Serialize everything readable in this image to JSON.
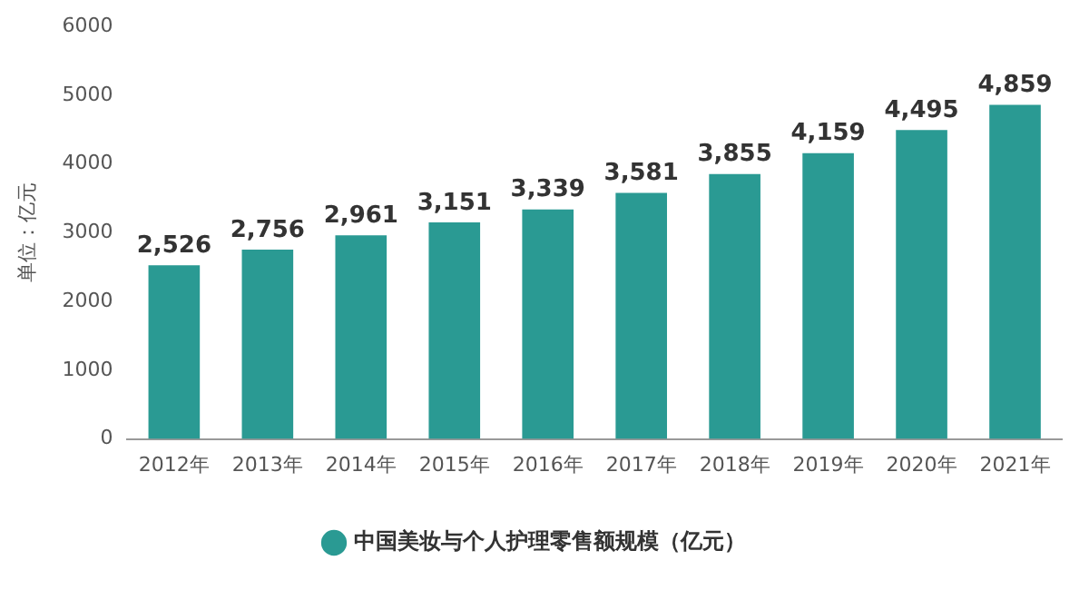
{
  "chart_data": {
    "type": "bar",
    "ylabel": "单位：亿元",
    "categories": [
      "2012年",
      "2013年",
      "2014年",
      "2015年",
      "2016年",
      "2017年",
      "2018年",
      "2019年",
      "2020年",
      "2021年"
    ],
    "series": [
      {
        "name": "中国美妆与个人护理零售额规模（亿元）",
        "color": "#2a9a93",
        "values": [
          2526,
          2756,
          2961,
          3151,
          3339,
          3581,
          3855,
          4159,
          4495,
          4859
        ],
        "value_labels": [
          "2,526",
          "2,756",
          "2,961",
          "3,151",
          "3,339",
          "3,581",
          "3,855",
          "4,159",
          "4,495",
          "4,859"
        ]
      }
    ],
    "ylim": [
      0,
      6000
    ],
    "yticks": [
      0,
      1000,
      2000,
      3000,
      4000,
      5000,
      6000
    ],
    "grid": false,
    "legend": "bottom"
  }
}
